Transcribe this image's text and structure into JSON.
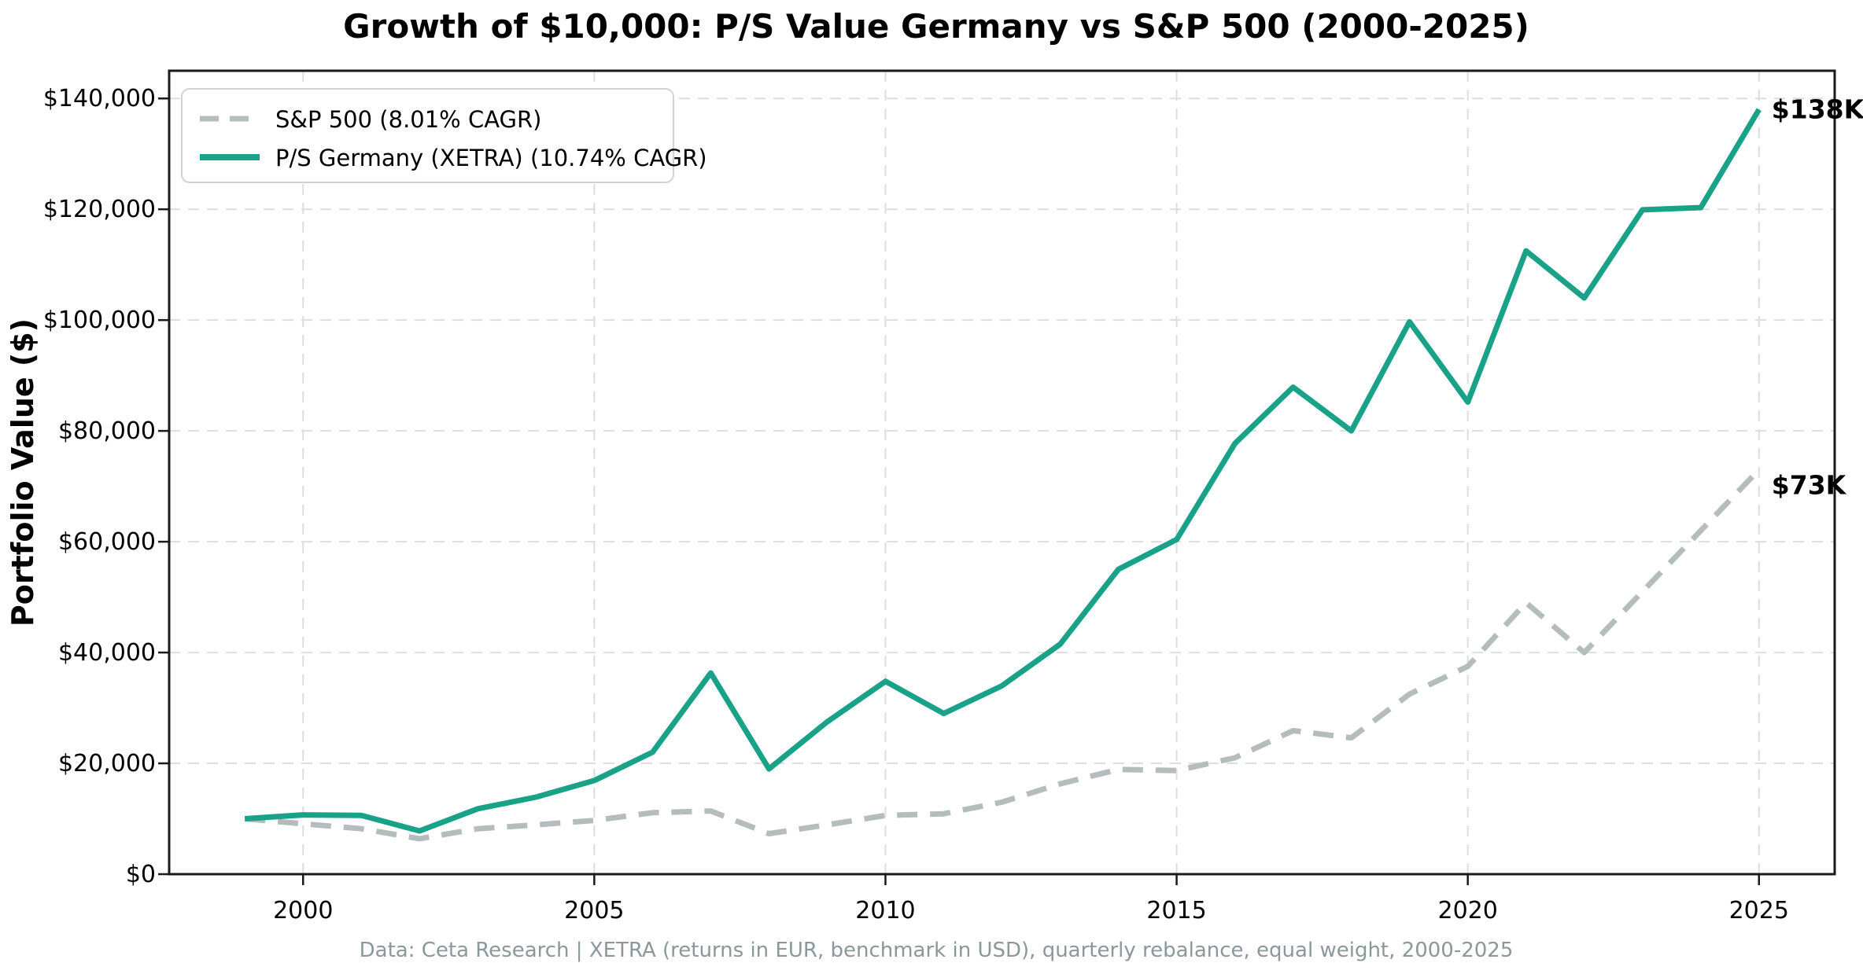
{
  "chart": {
    "title": "Growth of $10,000: P/S Value Germany vs S&P 500 (2000-2025)",
    "ylabel": "Portfolio Value ($)",
    "footer": "Data: Ceta Research | XETRA (returns in EUR, benchmark in USD), quarterly rebalance, equal weight, 2000-2025",
    "legend": [
      {
        "label": "S&P 500 (8.01% CAGR)",
        "color": "#b5bdbc",
        "style": "dashed"
      },
      {
        "label": "P/S Germany (XETRA) (10.74% CAGR)",
        "color": "#19a288",
        "style": "solid"
      }
    ],
    "annotations": {
      "germany": "$138K",
      "sp500": "$73K"
    }
  },
  "chart_data": {
    "type": "line",
    "title": "Growth of $10,000: P/S Value Germany vs S&P 500 (2000-2025)",
    "xlabel": "",
    "ylabel": "Portfolio Value ($)",
    "x": [
      1999,
      2000,
      2001,
      2002,
      2003,
      2004,
      2005,
      2006,
      2007,
      2008,
      2009,
      2010,
      2011,
      2012,
      2013,
      2014,
      2015,
      2016,
      2017,
      2018,
      2019,
      2020,
      2021,
      2022,
      2023,
      2024,
      2025
    ],
    "series": [
      {
        "name": "S&P 500 (8.01% CAGR)",
        "color": "#b5bdbc",
        "dash": true,
        "values": [
          10000,
          9100,
          8200,
          6400,
          8200,
          8900,
          9700,
          11100,
          11400,
          7300,
          8900,
          10600,
          10900,
          13000,
          16300,
          18900,
          18700,
          21000,
          25900,
          24600,
          32500,
          37500,
          49000,
          40000,
          51000,
          62000,
          73000
        ]
      },
      {
        "name": "P/S Germany (XETRA) (10.74% CAGR)",
        "color": "#19a288",
        "dash": false,
        "values": [
          10000,
          10700,
          10600,
          7800,
          11800,
          13900,
          16900,
          22000,
          36300,
          19000,
          27500,
          34800,
          29000,
          34000,
          41500,
          55000,
          60400,
          77700,
          87900,
          80000,
          99700,
          85200,
          112500,
          104000,
          119900,
          120300,
          138000
        ]
      }
    ],
    "xticks": {
      "values": [
        2000,
        2005,
        2010,
        2015,
        2020,
        2025
      ],
      "labels": [
        "2000",
        "2005",
        "2010",
        "2015",
        "2020",
        "2025"
      ]
    },
    "yticks": {
      "values": [
        0,
        20000,
        40000,
        60000,
        80000,
        100000,
        120000,
        140000
      ],
      "labels": [
        "$0",
        "$20,000",
        "$40,000",
        "$60,000",
        "$80,000",
        "$100,000",
        "$120,000",
        "$140,000"
      ]
    },
    "xlim": [
      1997.7,
      2026.3
    ],
    "ylim": [
      0,
      145000
    ],
    "grid": true,
    "legend_position": "upper-left",
    "end_labels": {
      "germany": "$138K",
      "sp500": "$73K"
    }
  }
}
